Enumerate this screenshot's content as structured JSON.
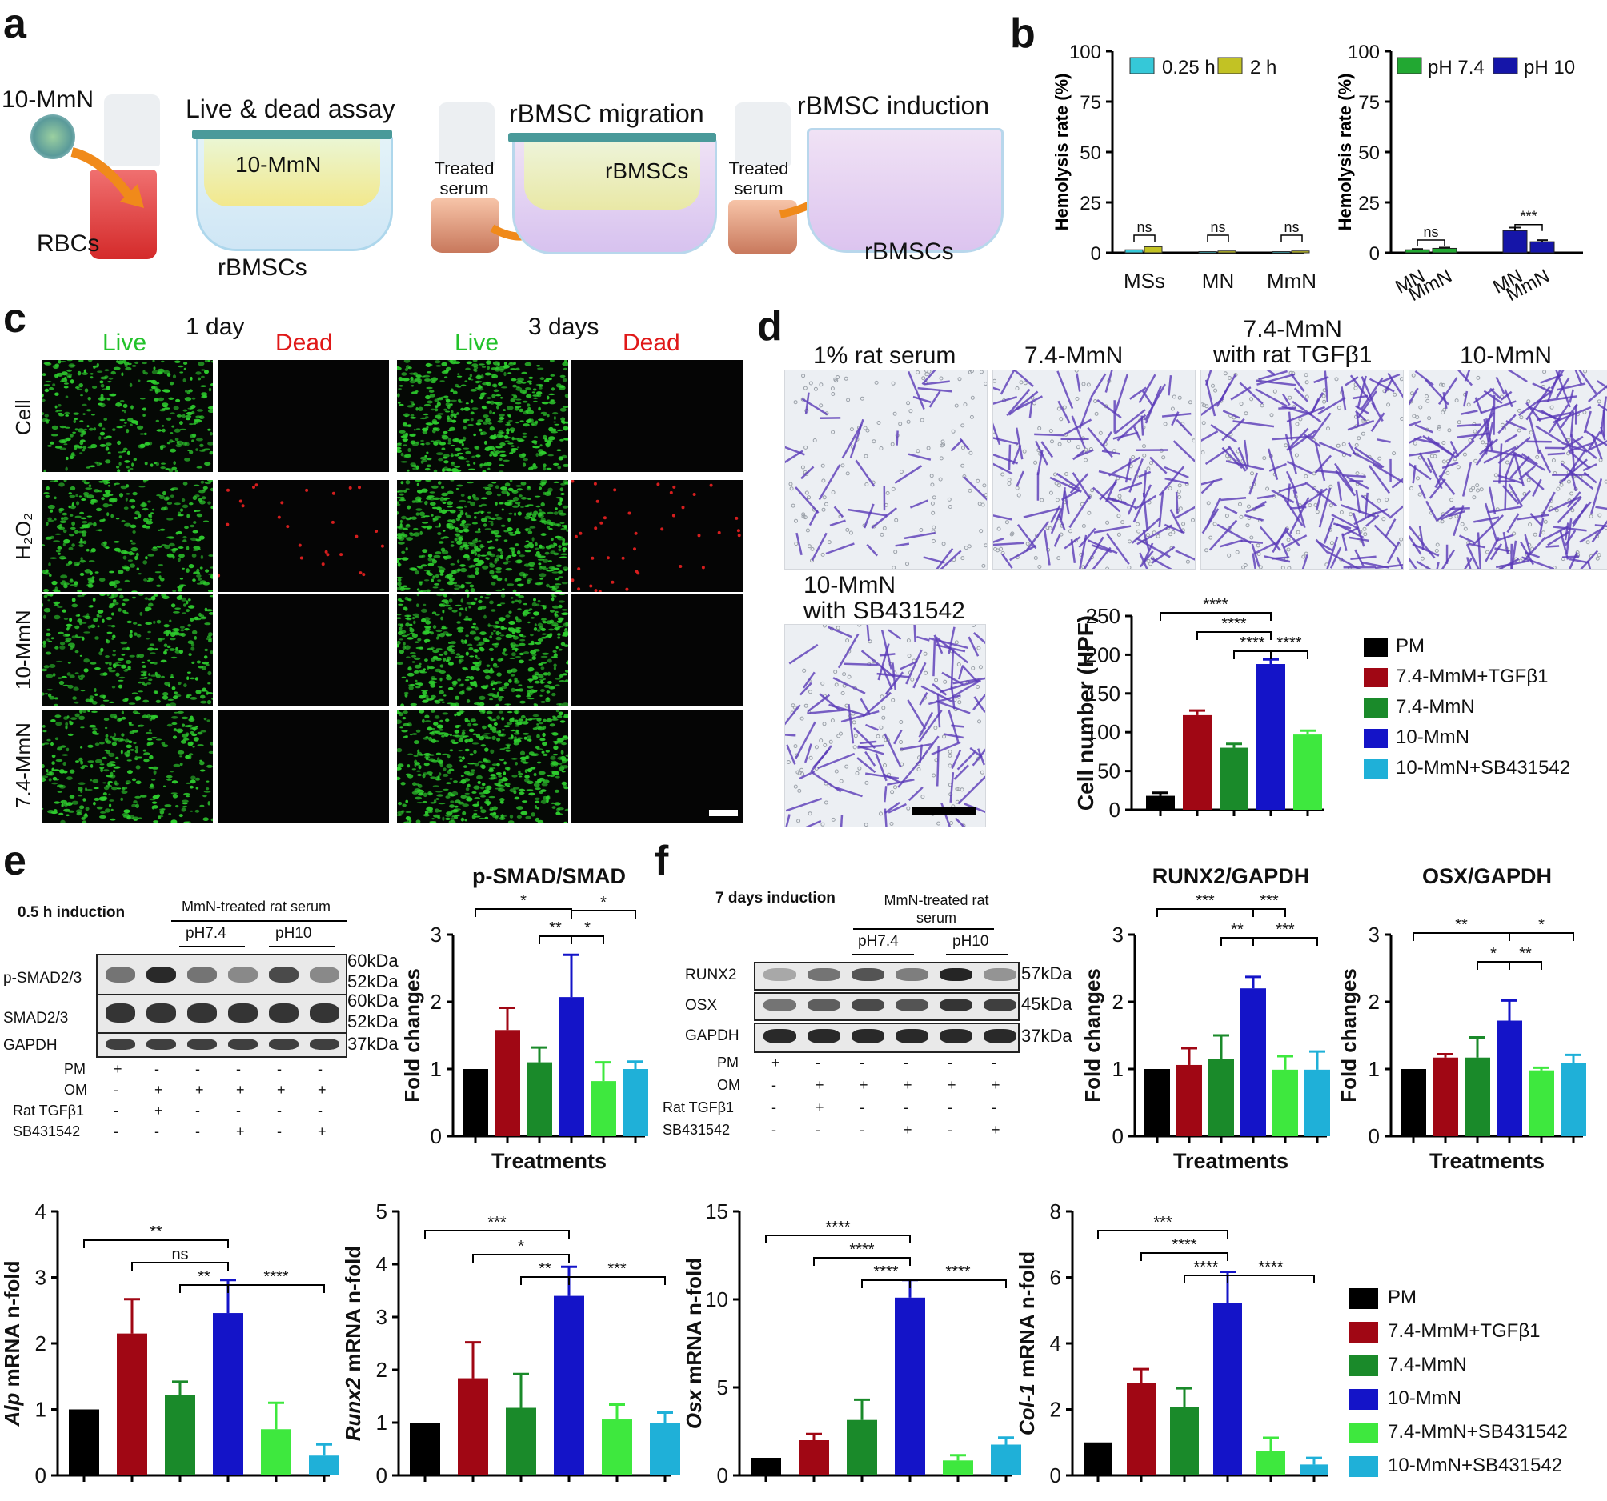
{
  "panels": {
    "a": "a",
    "b": "b",
    "c": "c",
    "d": "d",
    "e": "e",
    "f": "f"
  },
  "panel_a": {
    "labels": [
      "10-MmN",
      "RBCs",
      "Live & dead assay",
      "10-MmN",
      "rBMSCs",
      "Treated serum",
      "rBMSC migration",
      "rBMSCs",
      "Treated serum",
      "rBMSC induction",
      "rBMSCs"
    ]
  },
  "panel_c": {
    "headers": {
      "day1": "1 day",
      "day3": "3 days",
      "live": "Live",
      "dead": "Dead"
    },
    "rows": [
      "Cell",
      "H₂O₂",
      "10-MmN",
      "7.4-MmN"
    ],
    "colors": {
      "live": "#2ecc2e",
      "dead": "#e02020"
    }
  },
  "panel_d": {
    "images": [
      "1% rat serum",
      "7.4-MmN",
      "7.4-MmN\nwith rat TGFβ1",
      "10-MmN",
      "10-MmN\nwith SB431542"
    ]
  },
  "legend_d": [
    "PM",
    "7.4-MmM+TGFβ1",
    "7.4-MmN",
    "10-MmN",
    "10-MmN+SB431542"
  ],
  "legend_bottom": [
    "PM",
    "7.4-MmM+TGFβ1",
    "7.4-MmN",
    "10-MmN",
    "7.4-MmN+SB431542",
    "10-MmN+SB431542"
  ],
  "colors": [
    "#000000",
    "#a00714",
    "#1a8a2a",
    "#1414c8",
    "#3ee83e",
    "#1fb0d8"
  ],
  "panel_e": {
    "title": "0.5 h induction",
    "group": "MmN-treated rat serum",
    "ph": [
      "pH7.4",
      "pH10"
    ],
    "bands": [
      "p-SMAD2/3",
      "SMAD2/3",
      "GAPDH"
    ],
    "kda": [
      "60kDa",
      "52kDa",
      "60kDa",
      "52kDa",
      "37kDa"
    ],
    "conditions": [
      {
        "name": "PM",
        "signs": [
          "+",
          "-",
          "-",
          "-",
          "-",
          "-"
        ]
      },
      {
        "name": "OM",
        "signs": [
          "-",
          "+",
          "+",
          "+",
          "+",
          "+"
        ]
      },
      {
        "name": "Rat TGFβ1",
        "signs": [
          "-",
          "+",
          "-",
          "-",
          "-",
          "-"
        ]
      },
      {
        "name": "SB431542",
        "signs": [
          "-",
          "-",
          "-",
          "+",
          "-",
          "+"
        ]
      }
    ]
  },
  "panel_f": {
    "title": "7 days induction",
    "group": "MmN-treated rat serum",
    "ph": [
      "pH7.4",
      "pH10"
    ],
    "bands": [
      "RUNX2",
      "OSX",
      "GAPDH"
    ],
    "kda": [
      "57kDa",
      "45kDa",
      "37kDa"
    ],
    "conditions": [
      {
        "name": "PM",
        "signs": [
          "+",
          "-",
          "-",
          "-",
          "-",
          "-"
        ]
      },
      {
        "name": "OM",
        "signs": [
          "-",
          "+",
          "+",
          "+",
          "+",
          "+"
        ]
      },
      {
        "name": "Rat TGFβ1",
        "signs": [
          "-",
          "+",
          "-",
          "-",
          "-",
          "-"
        ]
      },
      {
        "name": "SB431542",
        "signs": [
          "-",
          "-",
          "-",
          "+",
          "-",
          "+"
        ]
      }
    ]
  },
  "chart_data": [
    {
      "id": "b1",
      "type": "bar",
      "title": "",
      "ylabel": "Hemolysis rate    (%)",
      "xlabel": "",
      "categories": [
        "MSs",
        "MN",
        "MmN"
      ],
      "ylim": [
        0,
        100
      ],
      "yticks": [
        0,
        25,
        50,
        75,
        100
      ],
      "series": [
        {
          "name": "0.25 h",
          "values": [
            1.5,
            0.6,
            0.6
          ],
          "err": [
            0.4,
            0.2,
            0.2
          ],
          "color": "#35c8d8"
        },
        {
          "name": "2 h",
          "values": [
            3.0,
            0.9,
            0.9
          ],
          "err": [
            0.6,
            0.3,
            0.3
          ],
          "color": "#c2c224"
        }
      ],
      "annotations": [
        "ns",
        "ns",
        "ns"
      ],
      "legend": "top"
    },
    {
      "id": "b2",
      "type": "bar",
      "title": "",
      "ylabel": "Hemolysis rate (%)",
      "xlabel": "",
      "groups": [
        "pH 7.4",
        "pH 10"
      ],
      "categories": [
        "MN",
        "MmN",
        "MN",
        "MmN"
      ],
      "ylim": [
        0,
        100
      ],
      "yticks": [
        0,
        25,
        50,
        75,
        100
      ],
      "values": [
        1.5,
        2.2,
        11.0,
        5.5
      ],
      "err": [
        0.4,
        0.4,
        1.5,
        0.8
      ],
      "series": [
        {
          "name": "pH 7.4",
          "color": "#22a832"
        },
        {
          "name": "pH 10",
          "color": "#1515a8"
        }
      ],
      "annotations": [
        "ns",
        "***"
      ],
      "legend": "top"
    },
    {
      "id": "d",
      "type": "bar",
      "title": "",
      "ylabel": "Cell number (HPF)",
      "xlabel": "",
      "ylim": [
        0,
        250
      ],
      "yticks": [
        0,
        50,
        100,
        150,
        200,
        250
      ],
      "values": [
        18,
        122,
        80,
        188,
        97
      ],
      "err": [
        4,
        6,
        5,
        6,
        5
      ],
      "annotations": [
        "****",
        "****",
        "****",
        "****"
      ]
    },
    {
      "id": "e",
      "type": "bar",
      "title": "p-SMAD/SMAD",
      "ylabel": "Fold changes",
      "xlabel": "Treatments",
      "ylim": [
        0,
        3
      ],
      "yticks": [
        0,
        1,
        2,
        3
      ],
      "values": [
        1.0,
        1.58,
        1.1,
        2.07,
        0.82,
        1.0
      ],
      "err": [
        0,
        0.33,
        0.22,
        0.63,
        0.28,
        0.11
      ],
      "annotations": [
        "*",
        "*",
        "**",
        "*"
      ]
    },
    {
      "id": "f1",
      "type": "bar",
      "title": "RUNX2/GAPDH",
      "ylabel": "Fold changes",
      "xlabel": "Treatments",
      "ylim": [
        0,
        3
      ],
      "yticks": [
        0,
        1,
        2,
        3
      ],
      "values": [
        1.0,
        1.06,
        1.15,
        2.2,
        0.99,
        0.99
      ],
      "err": [
        0,
        0.25,
        0.35,
        0.17,
        0.2,
        0.27
      ],
      "annotations": [
        "***",
        "***",
        "**",
        "***"
      ]
    },
    {
      "id": "f2",
      "type": "bar",
      "title": "OSX/GAPDH",
      "ylabel": "Fold changes",
      "xlabel": "Treatments",
      "ylim": [
        0,
        3
      ],
      "yticks": [
        0,
        1,
        2,
        3
      ],
      "values": [
        1.0,
        1.17,
        1.17,
        1.72,
        0.98,
        1.09
      ],
      "err": [
        0,
        0.05,
        0.3,
        0.3,
        0.04,
        0.12
      ],
      "annotations": [
        "**",
        "*",
        "*",
        "**"
      ]
    },
    {
      "id": "g1",
      "type": "bar",
      "title": "",
      "ylabel": "Alp mRNA n-fold",
      "ylabel_italic": "Alp",
      "xlabel": "",
      "ylim": [
        0,
        4
      ],
      "yticks": [
        0,
        1,
        2,
        3,
        4
      ],
      "values": [
        1.0,
        2.15,
        1.22,
        2.46,
        0.7,
        0.3
      ],
      "err": [
        0,
        0.52,
        0.2,
        0.5,
        0.4,
        0.17
      ],
      "annotations": [
        "**",
        "ns",
        "**",
        "****"
      ]
    },
    {
      "id": "g2",
      "type": "bar",
      "title": "",
      "ylabel": "Runx2 mRNA n-fold",
      "ylabel_italic": "Runx2",
      "xlabel": "",
      "ylim": [
        0,
        5
      ],
      "yticks": [
        0,
        1,
        2,
        3,
        4,
        5
      ],
      "values": [
        1.0,
        1.84,
        1.28,
        3.4,
        1.06,
        0.99
      ],
      "err": [
        0,
        0.68,
        0.64,
        0.55,
        0.28,
        0.2
      ],
      "annotations": [
        "***",
        "*",
        "**",
        "***"
      ]
    },
    {
      "id": "g3",
      "type": "bar",
      "title": "",
      "ylabel": "Osx mRNA n-fold",
      "ylabel_italic": "Osx",
      "xlabel": "",
      "ylim": [
        0,
        15
      ],
      "yticks": [
        0,
        5,
        10,
        15
      ],
      "values": [
        1.0,
        2.0,
        3.15,
        10.1,
        0.85,
        1.75
      ],
      "err": [
        0,
        0.35,
        1.15,
        1.0,
        0.3,
        0.4
      ],
      "annotations": [
        "****",
        "****",
        "****",
        "****"
      ]
    },
    {
      "id": "g4",
      "type": "bar",
      "title": "",
      "ylabel": "Col-1 mRNA n-fold",
      "ylabel_italic": "Col-1",
      "xlabel": "",
      "ylim": [
        0,
        8
      ],
      "yticks": [
        0,
        2,
        4,
        6,
        8
      ],
      "values": [
        1.0,
        2.8,
        2.08,
        5.22,
        0.74,
        0.33
      ],
      "err": [
        0,
        0.42,
        0.56,
        0.95,
        0.4,
        0.2
      ],
      "annotations": [
        "***",
        "****",
        "****",
        "****"
      ]
    }
  ]
}
